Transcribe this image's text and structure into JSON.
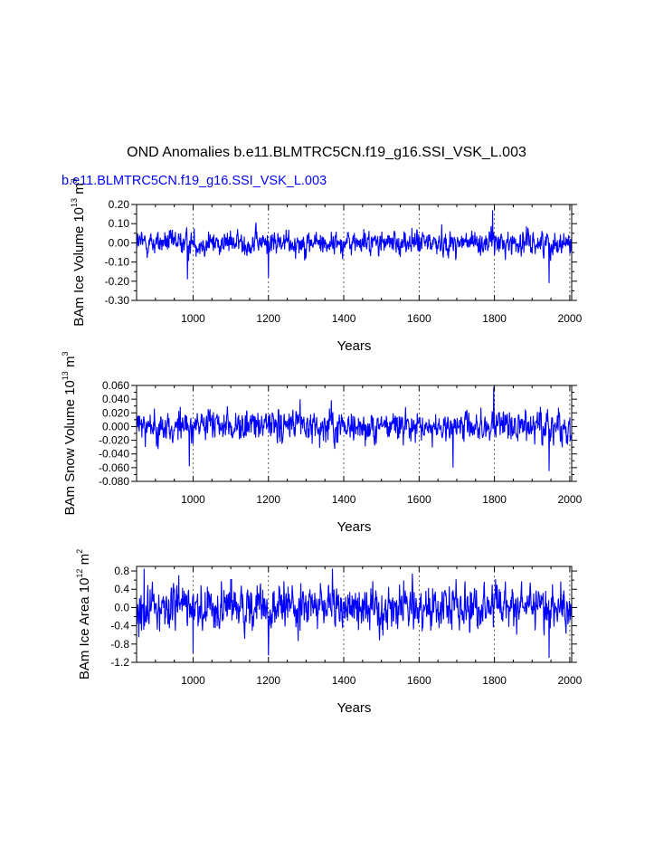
{
  "figure": {
    "title": "OND Anomalies b.e11.BLMTRC5CN.f19_g16.SSI_VSK_L.003",
    "subtitle": "b.e11.BLMTRC5CN.f19_g16.SSI_VSK_L.003",
    "line_color": "#0000ff",
    "grid_color": "#000000"
  },
  "chart_data": [
    {
      "type": "line",
      "title": "",
      "xlabel": "Years",
      "ylabel_main": "BAm Ice Volume 10",
      "ylabel_exp1": "13",
      "ylabel_unit": " m",
      "ylabel_exp2": "3",
      "xlim": [
        850,
        2005
      ],
      "ylim": [
        -0.3,
        0.2
      ],
      "xticks": [
        1000,
        1200,
        1400,
        1600,
        1800,
        2000
      ],
      "xtick_labels": [
        "1000",
        "1200",
        "1400",
        "1600",
        "1800",
        "2000"
      ],
      "yticks": [
        -0.3,
        -0.2,
        -0.1,
        0.0,
        0.1,
        0.2
      ],
      "ytick_labels": [
        "-0.30",
        "-0.20",
        "-0.10",
        "0.00",
        "0.10",
        "0.20"
      ],
      "series": [
        {
          "name": "BAm Ice Volume",
          "x_start": 850,
          "x_end": 2005,
          "noise_scale": 0.045,
          "peak_annotations": [
            {
              "x": 1795,
              "value": 0.17
            },
            {
              "x": 1945,
              "value": -0.21
            },
            {
              "x": 985,
              "value": -0.19
            },
            {
              "x": 1200,
              "value": -0.18
            }
          ]
        }
      ]
    },
    {
      "type": "line",
      "title": "",
      "xlabel": "Years",
      "ylabel_main": "BAm Snow Volume 10",
      "ylabel_exp1": "13",
      "ylabel_unit": " m",
      "ylabel_exp2": "3",
      "xlim": [
        850,
        2005
      ],
      "ylim": [
        -0.08,
        0.06
      ],
      "xticks": [
        1000,
        1200,
        1400,
        1600,
        1800,
        2000
      ],
      "xtick_labels": [
        "1000",
        "1200",
        "1400",
        "1600",
        "1800",
        "2000"
      ],
      "yticks": [
        -0.08,
        -0.06,
        -0.04,
        -0.02,
        0.0,
        0.02,
        0.04,
        0.06
      ],
      "ytick_labels": [
        "-0.080",
        "-0.060",
        "-0.040",
        "-0.020",
        "0.000",
        "0.020",
        "0.040",
        "0.060"
      ],
      "series": [
        {
          "name": "BAm Snow Volume",
          "x_start": 850,
          "x_end": 2005,
          "noise_scale": 0.016,
          "peak_annotations": [
            {
              "x": 1798,
              "value": 0.058
            },
            {
              "x": 1945,
              "value": -0.065
            },
            {
              "x": 1690,
              "value": -0.06
            },
            {
              "x": 990,
              "value": -0.058
            }
          ]
        }
      ]
    },
    {
      "type": "line",
      "title": "",
      "xlabel": "Years",
      "ylabel_main": "BAm Ice Area 10",
      "ylabel_exp1": "12",
      "ylabel_unit": " m",
      "ylabel_exp2": "2",
      "xlim": [
        850,
        2005
      ],
      "ylim": [
        -1.2,
        0.9
      ],
      "xticks": [
        1000,
        1200,
        1400,
        1600,
        1800,
        2000
      ],
      "xtick_labels": [
        "1000",
        "1200",
        "1400",
        "1600",
        "1800",
        "2000"
      ],
      "yticks": [
        -1.2,
        -0.8,
        -0.4,
        0.0,
        0.4,
        0.8
      ],
      "ytick_labels": [
        "-1.2",
        "-0.8",
        "-0.4",
        "0.0",
        "0.4",
        "0.8"
      ],
      "series": [
        {
          "name": "BAm Ice Area",
          "x_start": 850,
          "x_end": 2005,
          "noise_scale": 0.33,
          "peak_annotations": [
            {
              "x": 1370,
              "value": 0.85
            },
            {
              "x": 1945,
              "value": -1.1
            },
            {
              "x": 1200,
              "value": -1.05
            },
            {
              "x": 1000,
              "value": -1.0
            },
            {
              "x": 870,
              "value": 0.85
            }
          ]
        }
      ]
    }
  ]
}
